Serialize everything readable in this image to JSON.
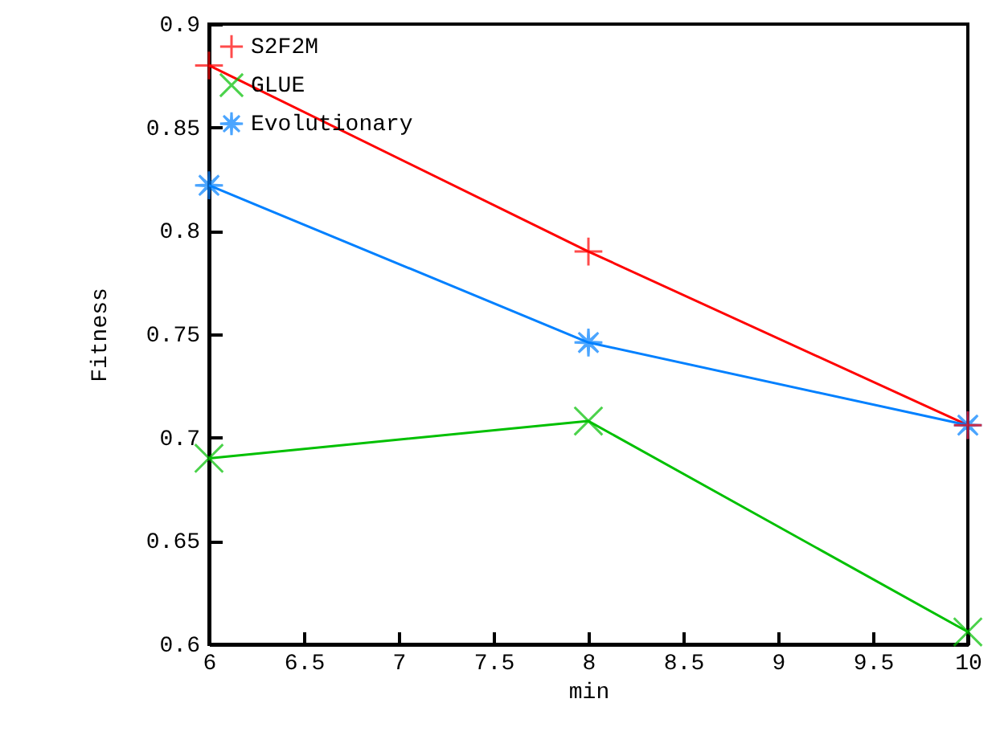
{
  "chart_data": {
    "type": "line",
    "xlabel": "min",
    "ylabel": "Fitness",
    "x": [
      6,
      8,
      10
    ],
    "series": [
      {
        "name": "S2F2M",
        "color": "#ff0000",
        "marker": "plus",
        "values": [
          0.88,
          0.79,
          0.706
        ]
      },
      {
        "name": "GLUE",
        "color": "#00c000",
        "marker": "cross",
        "values": [
          0.69,
          0.708,
          0.606
        ]
      },
      {
        "name": "Evolutionary",
        "color": "#0080ff",
        "marker": "star",
        "values": [
          0.822,
          0.746,
          0.706
        ]
      }
    ],
    "xlim": [
      6,
      10
    ],
    "xticks": [
      6,
      6.5,
      7,
      7.5,
      8,
      8.5,
      9,
      9.5,
      10
    ],
    "ylim": [
      0.6,
      0.9
    ],
    "yticks": [
      0.6,
      0.65,
      0.7,
      0.75,
      0.8,
      0.85,
      0.9
    ],
    "grid": false,
    "legend": "top left",
    "line_style": "solid"
  }
}
